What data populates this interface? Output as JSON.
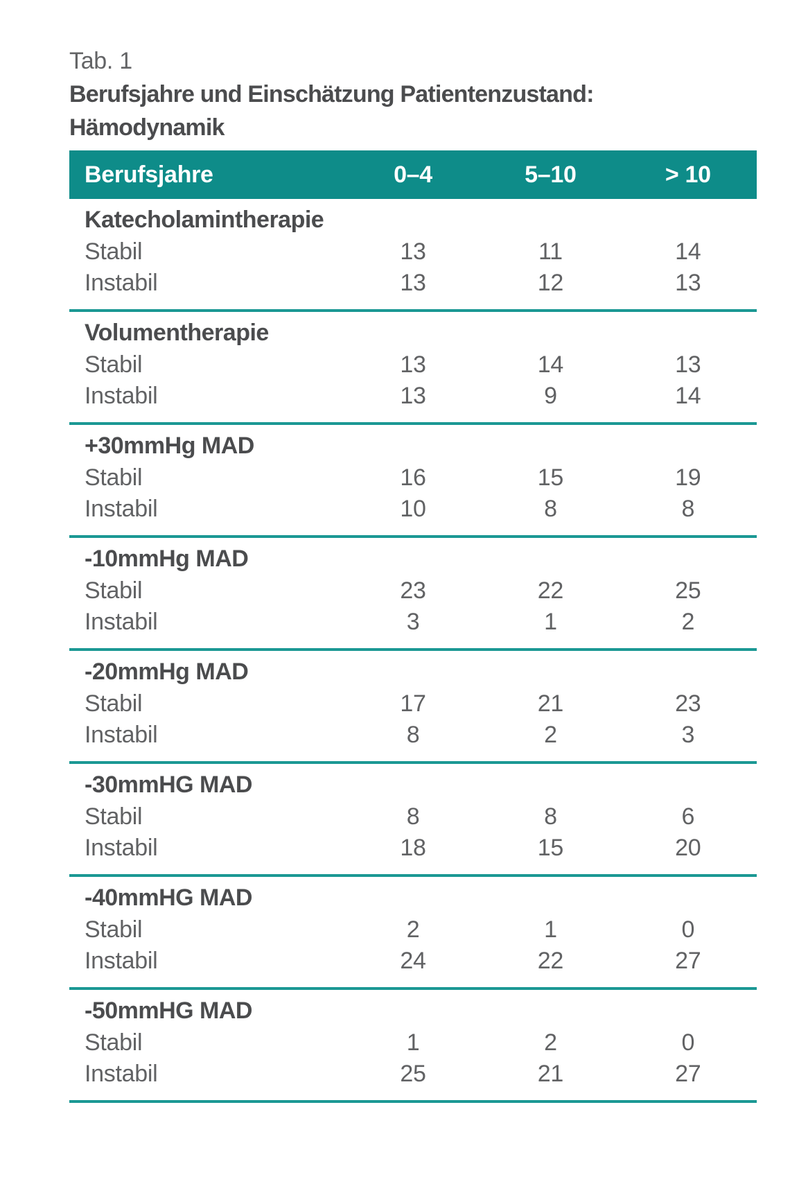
{
  "figure": {
    "tab_label": "Tab. 1",
    "title_line1": "Berufsjahre und Einschätzung Patientenzustand:",
    "title_line2": "Hämodynamik"
  },
  "chart_data": {
    "type": "table",
    "title": "Berufsjahre und Einschätzung Patientenzustand: Hämodynamik",
    "columns": [
      "Berufsjahre",
      "0–4",
      "5–10",
      "> 10"
    ],
    "sections": [
      {
        "label": "Katecholamintherapie",
        "rows": [
          {
            "label": "Stabil",
            "values": [
              "13",
              "11",
              "14"
            ]
          },
          {
            "label": "Instabil",
            "values": [
              "13",
              "12",
              "13"
            ]
          }
        ]
      },
      {
        "label": "Volumentherapie",
        "rows": [
          {
            "label": "Stabil",
            "values": [
              "13",
              "14",
              "13"
            ]
          },
          {
            "label": "Instabil",
            "values": [
              "13",
              "9",
              "14"
            ]
          }
        ]
      },
      {
        "label": "+30mmHg MAD",
        "rows": [
          {
            "label": "Stabil",
            "values": [
              "16",
              "15",
              "19"
            ]
          },
          {
            "label": "Instabil",
            "values": [
              "10",
              "8",
              "8"
            ]
          }
        ]
      },
      {
        "label": "-10mmHg MAD",
        "rows": [
          {
            "label": "Stabil",
            "values": [
              "23",
              "22",
              "25"
            ]
          },
          {
            "label": "Instabil",
            "values": [
              "3",
              "1",
              "2"
            ]
          }
        ]
      },
      {
        "label": "-20mmHg MAD",
        "rows": [
          {
            "label": "Stabil",
            "values": [
              "17",
              "21",
              "23"
            ]
          },
          {
            "label": "Instabil",
            "values": [
              "8",
              "2",
              "3"
            ]
          }
        ]
      },
      {
        "label": "-30mmHG MAD",
        "rows": [
          {
            "label": "Stabil",
            "values": [
              "8",
              "8",
              "6"
            ]
          },
          {
            "label": "Instabil",
            "values": [
              "18",
              "15",
              "20"
            ]
          }
        ]
      },
      {
        "label": "-40mmHG MAD",
        "rows": [
          {
            "label": "Stabil",
            "values": [
              "2",
              "1",
              "0"
            ]
          },
          {
            "label": "Instabil",
            "values": [
              "24",
              "22",
              "27"
            ]
          }
        ]
      },
      {
        "label": "-50mmHG MAD",
        "rows": [
          {
            "label": "Stabil",
            "values": [
              "1",
              "2",
              "0"
            ]
          },
          {
            "label": "Instabil",
            "values": [
              "25",
              "21",
              "27"
            ]
          }
        ]
      }
    ]
  },
  "colors": {
    "header_teal": "#0E8C89",
    "separator_teal": "#1B9894",
    "header_text": "#FFFFFF",
    "body_text": "#616264",
    "bold_text": "#4B4C4E"
  }
}
